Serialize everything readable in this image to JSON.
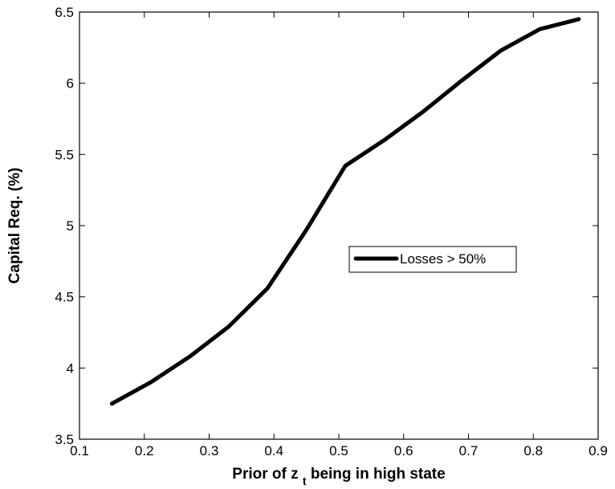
{
  "chart_data": {
    "type": "line",
    "title": "",
    "xlabel": {
      "main": "Prior of z",
      "sub": "t",
      "rest": " being in high state"
    },
    "ylabel": "Capital Req. (%)",
    "xlim": [
      0.1,
      0.9
    ],
    "ylim": [
      3.5,
      6.5
    ],
    "xticks": [
      0.1,
      0.2,
      0.3,
      0.4,
      0.5,
      0.6,
      0.7,
      0.8,
      0.9
    ],
    "xtick_labels": [
      "0.1",
      "0.2",
      "0.3",
      "0.4",
      "0.5",
      "0.6",
      "0.7",
      "0.8",
      "0.9"
    ],
    "yticks": [
      3.5,
      4,
      4.5,
      5,
      5.5,
      6,
      6.5
    ],
    "ytick_labels": [
      "3.5",
      "4",
      "4.5",
      "5",
      "5.5",
      "6",
      "6.5"
    ],
    "grid": false,
    "legend_position": "center-right",
    "series": [
      {
        "name": "Losses > 50%",
        "color": "#000000",
        "x": [
          0.15,
          0.21,
          0.27,
          0.33,
          0.39,
          0.45,
          0.51,
          0.57,
          0.63,
          0.69,
          0.75,
          0.81,
          0.87
        ],
        "y": [
          3.75,
          3.9,
          4.08,
          4.29,
          4.56,
          4.97,
          5.42,
          5.6,
          5.8,
          6.02,
          6.23,
          6.38,
          6.45
        ]
      }
    ]
  }
}
